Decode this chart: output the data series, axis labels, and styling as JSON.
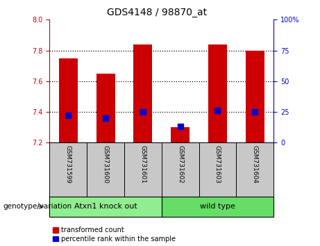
{
  "title": "GDS4148 / 98870_at",
  "samples": [
    "GSM731599",
    "GSM731600",
    "GSM731601",
    "GSM731602",
    "GSM731603",
    "GSM731604"
  ],
  "transformed_counts": [
    7.75,
    7.65,
    7.84,
    7.3,
    7.84,
    7.8
  ],
  "percentile_ranks": [
    22,
    20,
    25,
    13,
    26,
    25
  ],
  "ylim_left": [
    7.2,
    8.0
  ],
  "ylim_right": [
    0,
    100
  ],
  "yticks_left": [
    7.2,
    7.4,
    7.6,
    7.8,
    8.0
  ],
  "yticks_right": [
    0,
    25,
    50,
    75,
    100
  ],
  "groups": [
    {
      "label": "Atxn1 knock out",
      "indices": [
        0,
        1,
        2
      ],
      "color": "#90EE90"
    },
    {
      "label": "wild type",
      "indices": [
        3,
        4,
        5
      ],
      "color": "#66DD66"
    }
  ],
  "bar_color": "#CC0000",
  "dot_color": "#0000CC",
  "bar_width": 0.5,
  "bar_bottom": 7.2,
  "tick_label_bg": "#C8C8C8",
  "legend_red_label": "transformed count",
  "legend_blue_label": "percentile rank within the sample",
  "genotype_label": "genotype/variation",
  "left_axis_color": "#CC0000",
  "right_axis_color": "#0000CC",
  "dotted_line_values": [
    7.4,
    7.6,
    7.8
  ],
  "dot_size": 30,
  "ytick_8_label": "8",
  "ytick_right_100_label": "100%"
}
